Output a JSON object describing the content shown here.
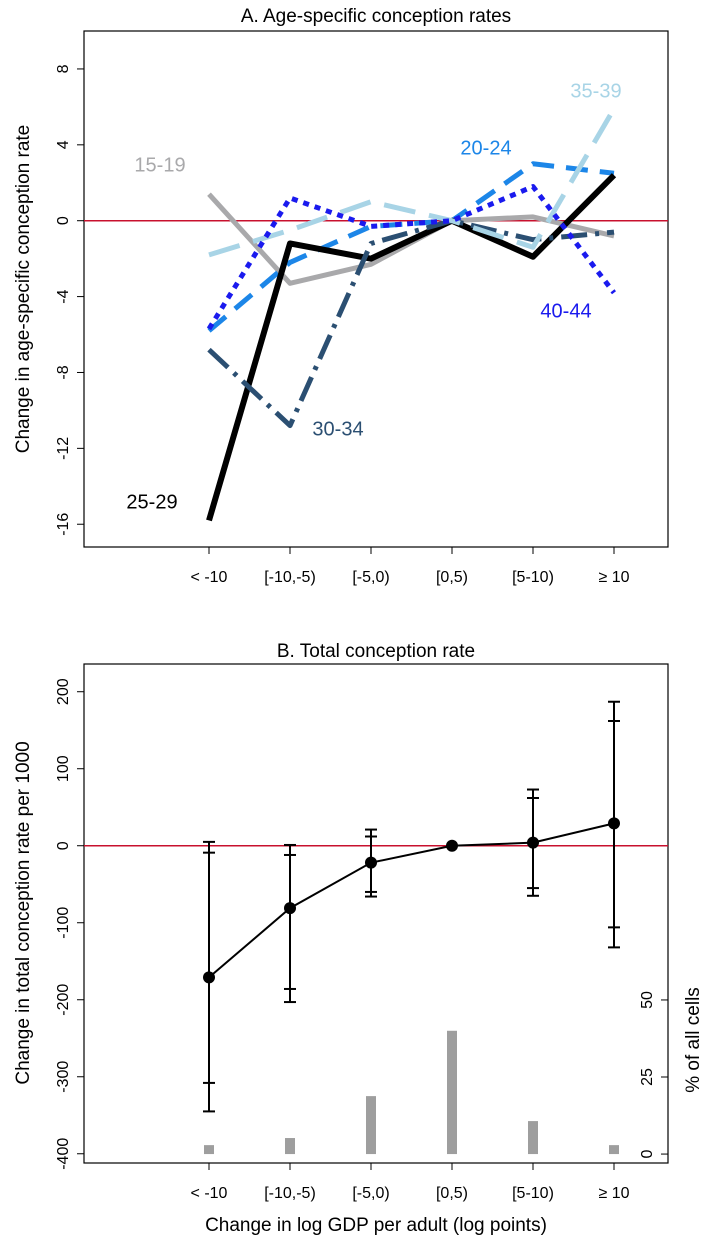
{
  "chart_data": [
    {
      "type": "line",
      "title": "A. Age-specific conception rates",
      "ylabel": "Change in age-specific conception rate",
      "categories": [
        "< -10",
        "[-10,-5)",
        "[-5,0)",
        "[0,5)",
        "[5-10)",
        "≥ 10"
      ],
      "ylim": [
        -17.2,
        10
      ],
      "yticks": [
        -16,
        -12,
        -8,
        -4,
        0,
        4,
        8
      ],
      "refline": 0,
      "refline_color": "#c8102e",
      "series": [
        {
          "name": "15-19",
          "color": "#a9a9ab",
          "linestyle": "solid",
          "values": [
            1.4,
            -3.3,
            -2.3,
            0,
            0.2,
            -0.8
          ]
        },
        {
          "name": "20-24",
          "color": "#1c86e8",
          "linestyle": "dashed",
          "values": [
            -5.8,
            -2.2,
            -0.3,
            0,
            3.0,
            2.5
          ]
        },
        {
          "name": "25-29",
          "color": "#000000",
          "linestyle": "solid",
          "values": [
            -15.8,
            -1.2,
            -2.0,
            0,
            -1.9,
            2.4
          ]
        },
        {
          "name": "30-34",
          "color": "#2b4f72",
          "linestyle": "dotdash",
          "values": [
            -6.8,
            -10.8,
            -1.2,
            0,
            -1.0,
            -0.6
          ]
        },
        {
          "name": "35-39",
          "color": "#a8d4e6",
          "linestyle": "longdash",
          "values": [
            -1.8,
            -0.5,
            1.0,
            0,
            -1.4,
            5.9
          ]
        },
        {
          "name": "40-44",
          "color": "#1a1aee",
          "linestyle": "dotted",
          "values": [
            -5.7,
            1.2,
            -0.3,
            0,
            1.8,
            -3.8
          ]
        }
      ]
    },
    {
      "type": "errorbar",
      "title": "B. Total conception rate",
      "ylabel": "Change in total conception rate per 1000",
      "xlabel": "Change in log GDP per adult (log points)",
      "y2label": "% of all cells",
      "categories": [
        "< -10",
        "[-10,-5)",
        "[-5,0)",
        "[0,5)",
        "[5-10)",
        "≥ 10"
      ],
      "ylim": [
        -412,
        236
      ],
      "yticks": [
        -400,
        -300,
        -200,
        -100,
        0,
        100,
        200
      ],
      "y2lim": [
        -2.9,
        159
      ],
      "y2ticks": [
        0,
        25,
        50
      ],
      "refline": 0,
      "refline_color": "#c8102e",
      "color": "#000000",
      "values": [
        -171,
        -81,
        -22,
        0,
        4,
        29
      ],
      "ci_outer_low": [
        -345,
        -203,
        -66,
        null,
        -65,
        -132
      ],
      "ci_outer_high": [
        5,
        1,
        21,
        null,
        73,
        187
      ],
      "ci_inner_low": [
        -308,
        -186,
        -60,
        null,
        -55,
        -106
      ],
      "ci_inner_high": [
        -9,
        -12,
        12,
        null,
        62,
        162
      ],
      "cell_share": [
        2.9,
        5.2,
        18.8,
        40,
        10.7,
        2.9
      ],
      "cell_share_color": "#9e9e9e"
    }
  ]
}
